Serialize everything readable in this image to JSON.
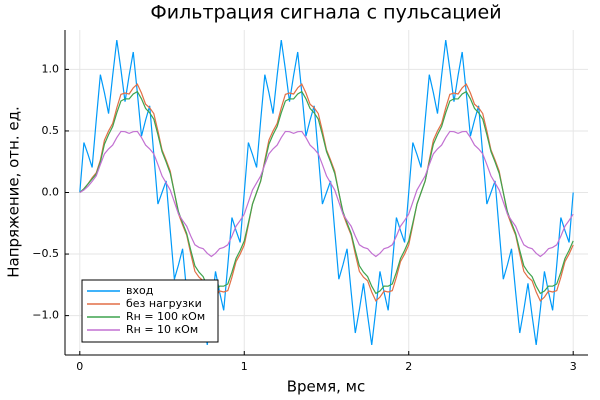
{
  "chart_data": {
    "type": "line",
    "title": "Фильтрация сигнала с пульсацией",
    "xlabel": "Время, мс",
    "ylabel": "Напряжение, отн. ед.",
    "xlim": [
      -0.09,
      3.09
    ],
    "ylim": [
      -1.32,
      1.32
    ],
    "xticks": [
      0,
      1,
      2,
      3
    ],
    "yticks": [
      {
        "value": -1,
        "label": "−1.0"
      },
      {
        "value": -0.5,
        "label": "−0.5"
      },
      {
        "value": 0,
        "label": "0.0"
      },
      {
        "value": 0.5,
        "label": "0.5"
      },
      {
        "value": 1,
        "label": "1.0"
      }
    ],
    "grid": true,
    "legend": "bottom-left",
    "x": [
      0,
      0.025,
      0.05,
      0.075,
      0.1,
      0.125,
      0.15,
      0.175,
      0.2,
      0.225,
      0.25,
      0.275,
      0.3,
      0.325,
      0.35,
      0.375,
      0.4,
      0.425,
      0.45,
      0.475,
      0.5,
      0.525,
      0.55,
      0.575,
      0.6,
      0.625,
      0.65,
      0.675,
      0.7,
      0.725,
      0.75,
      0.775,
      0.8,
      0.825,
      0.85,
      0.875,
      0.9,
      0.925,
      0.95,
      0.975,
      1,
      1.025,
      1.05,
      1.075,
      1.1,
      1.125,
      1.15,
      1.175,
      1.2,
      1.225,
      1.25,
      1.275,
      1.3,
      1.325,
      1.35,
      1.375,
      1.4,
      1.425,
      1.45,
      1.475,
      1.5,
      1.525,
      1.55,
      1.575,
      1.6,
      1.625,
      1.65,
      1.675,
      1.7,
      1.725,
      1.75,
      1.775,
      1.8,
      1.825,
      1.85,
      1.875,
      1.9,
      1.925,
      1.95,
      1.975,
      2,
      2.025,
      2.05,
      2.075,
      2.1,
      2.125,
      2.15,
      2.175,
      2.2,
      2.225,
      2.25,
      2.275,
      2.3,
      2.325,
      2.35,
      2.375,
      2.4,
      2.425,
      2.45,
      2.475,
      2.5,
      2.525,
      2.55,
      2.575,
      2.6,
      2.625,
      2.65,
      2.675,
      2.7,
      2.725,
      2.75,
      2.775,
      2.8,
      2.825,
      2.85,
      2.875,
      2.9,
      2.925,
      2.95,
      2.975,
      3
    ],
    "series": [
      {
        "name": "вход",
        "color": "#009af9",
        "values": [
          0,
          0.406,
          0.309,
          0.204,
          0.588,
          0.957,
          0.809,
          0.641,
          0.951,
          1.238,
          1,
          0.738,
          0.951,
          1.141,
          0.809,
          0.457,
          0.588,
          0.704,
          0.309,
          -0.094,
          0,
          0.094,
          -0.309,
          -0.704,
          -0.588,
          -0.457,
          -0.809,
          -1.141,
          -0.951,
          -0.738,
          -1,
          -1.238,
          -0.951,
          -0.641,
          -0.809,
          -0.957,
          -0.588,
          -0.204,
          -0.309,
          -0.406,
          0,
          0.406,
          0.309,
          0.204,
          0.588,
          0.957,
          0.809,
          0.641,
          0.951,
          1.238,
          1,
          0.738,
          0.951,
          1.141,
          0.809,
          0.457,
          0.588,
          0.704,
          0.309,
          -0.094,
          0,
          0.094,
          -0.309,
          -0.704,
          -0.588,
          -0.457,
          -0.809,
          -1.141,
          -0.951,
          -0.738,
          -1,
          -1.238,
          -0.951,
          -0.641,
          -0.809,
          -0.957,
          -0.588,
          -0.204,
          -0.309,
          -0.406,
          0,
          0.406,
          0.309,
          0.204,
          0.588,
          0.957,
          0.809,
          0.641,
          0.951,
          1.238,
          1,
          0.738,
          0.951,
          1.141,
          0.809,
          0.457,
          0.588,
          0.704,
          0.309,
          -0.094,
          0,
          0.094,
          -0.309,
          -0.704,
          -0.588,
          -0.457,
          -0.809,
          -1.141,
          -0.951,
          -0.738,
          -1,
          -1.238,
          -0.951,
          -0.641,
          -0.809,
          -0.957,
          -0.588,
          -0.204,
          -0.309,
          -0.406,
          0
        ]
      },
      {
        "name": "без нагрузки",
        "color": "#e26f46",
        "values": [
          0,
          0.03,
          0.07,
          0.12,
          0.16,
          0.263,
          0.426,
          0.5,
          0.561,
          0.688,
          0.797,
          0.808,
          0.8,
          0.85,
          0.88,
          0.808,
          0.717,
          0.688,
          0.641,
          0.5,
          0.346,
          0.263,
          0.173,
          0,
          -0.173,
          -0.263,
          -0.346,
          -0.5,
          -0.641,
          -0.688,
          -0.717,
          -0.808,
          -0.88,
          -0.85,
          -0.8,
          -0.808,
          -0.797,
          -0.688,
          -0.561,
          -0.5,
          -0.426,
          -0.263,
          -0.093,
          0,
          0.093,
          0.263,
          0.426,
          0.5,
          0.561,
          0.688,
          0.797,
          0.808,
          0.8,
          0.85,
          0.88,
          0.808,
          0.717,
          0.688,
          0.641,
          0.5,
          0.346,
          0.263,
          0.173,
          0,
          -0.173,
          -0.263,
          -0.346,
          -0.5,
          -0.641,
          -0.688,
          -0.717,
          -0.808,
          -0.88,
          -0.85,
          -0.8,
          -0.808,
          -0.797,
          -0.688,
          -0.561,
          -0.5,
          -0.426,
          -0.263,
          -0.093,
          0,
          0.093,
          0.263,
          0.426,
          0.5,
          0.561,
          0.688,
          0.797,
          0.808,
          0.8,
          0.85,
          0.88,
          0.808,
          0.717,
          0.688,
          0.641,
          0.5,
          0.346,
          0.263,
          0.173,
          0,
          -0.173,
          -0.263,
          -0.346,
          -0.5,
          -0.641,
          -0.688,
          -0.717,
          -0.808,
          -0.88,
          -0.85,
          -0.8,
          -0.808,
          -0.797,
          -0.688,
          -0.561,
          -0.5,
          -0.426
        ]
      },
      {
        "name": "Rн = 100 кОм",
        "color": "#3ea44e",
        "values": [
          0,
          0.03,
          0.07,
          0.11,
          0.15,
          0.247,
          0.393,
          0.47,
          0.536,
          0.647,
          0.743,
          0.761,
          0.76,
          0.8,
          0.82,
          0.761,
          0.683,
          0.647,
          0.596,
          0.47,
          0.333,
          0.247,
          0.155,
          0,
          -0.155,
          -0.247,
          -0.333,
          -0.47,
          -0.596,
          -0.647,
          -0.683,
          -0.761,
          -0.82,
          -0.8,
          -0.76,
          -0.761,
          -0.743,
          -0.647,
          -0.536,
          -0.47,
          -0.393,
          -0.247,
          -0.095,
          0,
          0.095,
          0.247,
          0.393,
          0.47,
          0.536,
          0.647,
          0.743,
          0.761,
          0.76,
          0.8,
          0.82,
          0.761,
          0.683,
          0.647,
          0.596,
          0.47,
          0.333,
          0.247,
          0.155,
          0,
          -0.155,
          -0.247,
          -0.333,
          -0.47,
          -0.596,
          -0.647,
          -0.683,
          -0.761,
          -0.82,
          -0.8,
          -0.76,
          -0.761,
          -0.743,
          -0.647,
          -0.536,
          -0.47,
          -0.393,
          -0.247,
          -0.095,
          0,
          0.095,
          0.247,
          0.393,
          0.47,
          0.536,
          0.647,
          0.743,
          0.761,
          0.76,
          0.8,
          0.82,
          0.761,
          0.683,
          0.647,
          0.596,
          0.47,
          0.333,
          0.247,
          0.155,
          0,
          -0.155,
          -0.247,
          -0.333,
          -0.47,
          -0.596,
          -0.647,
          -0.683,
          -0.761,
          -0.82,
          -0.8,
          -0.76,
          -0.761,
          -0.743,
          -0.647,
          -0.536,
          -0.47,
          -0.393
        ]
      },
      {
        "name": "Rн = 10 кОм",
        "color": "#c271d2",
        "values": [
          0,
          0.02,
          0.05,
          0.09,
          0.135,
          0.227,
          0.314,
          0.354,
          0.385,
          0.446,
          0.496,
          0.494,
          0.48,
          0.494,
          0.496,
          0.446,
          0.385,
          0.354,
          0.314,
          0.227,
          0.135,
          0.078,
          0.02,
          -0.078,
          -0.175,
          -0.227,
          -0.274,
          -0.354,
          -0.425,
          -0.446,
          -0.456,
          -0.494,
          -0.52,
          -0.494,
          -0.456,
          -0.446,
          -0.425,
          -0.354,
          -0.274,
          -0.227,
          -0.175,
          -0.078,
          0.02,
          0.078,
          0.135,
          0.227,
          0.314,
          0.354,
          0.385,
          0.446,
          0.496,
          0.494,
          0.48,
          0.494,
          0.496,
          0.446,
          0.385,
          0.354,
          0.314,
          0.227,
          0.135,
          0.078,
          0.02,
          -0.078,
          -0.175,
          -0.227,
          -0.274,
          -0.354,
          -0.425,
          -0.446,
          -0.456,
          -0.494,
          -0.52,
          -0.494,
          -0.456,
          -0.446,
          -0.425,
          -0.354,
          -0.274,
          -0.227,
          -0.175,
          -0.078,
          0.02,
          0.078,
          0.135,
          0.227,
          0.314,
          0.354,
          0.385,
          0.446,
          0.496,
          0.494,
          0.48,
          0.494,
          0.496,
          0.446,
          0.385,
          0.354,
          0.314,
          0.227,
          0.135,
          0.078,
          0.02,
          -0.078,
          -0.175,
          -0.227,
          -0.274,
          -0.354,
          -0.425,
          -0.446,
          -0.456,
          -0.494,
          -0.52,
          -0.494,
          -0.456,
          -0.446,
          -0.425,
          -0.354,
          -0.274,
          -0.227,
          -0.175
        ]
      }
    ]
  }
}
